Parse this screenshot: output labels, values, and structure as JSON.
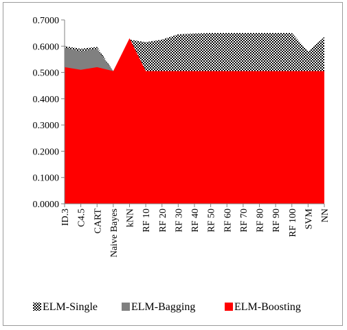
{
  "chart_data": {
    "type": "area",
    "title": "",
    "xlabel": "",
    "ylabel": "",
    "ylim": [
      0,
      0.7
    ],
    "yticks": [
      "0.0000",
      "0.1000",
      "0.2000",
      "0.3000",
      "0.4000",
      "0.5000",
      "0.6000",
      "0.7000"
    ],
    "y_tick_values": [
      0,
      0.1,
      0.2,
      0.3,
      0.4,
      0.5,
      0.6,
      0.7
    ],
    "categories": [
      "ID.3",
      "C4.5",
      "CART",
      "Naive Bayes",
      "kNN",
      "RF 10",
      "RF 20",
      "RF 30",
      "RF 40",
      "RF 50",
      "RF 60",
      "RF 70",
      "RF 80",
      "RF 90",
      "RF 100",
      "SVM",
      "NN"
    ],
    "grid": false,
    "legend_position": "bottom",
    "series": [
      {
        "name": "ELM-Single",
        "pattern": "checker",
        "color": "#000000",
        "values": [
          0.6,
          0.59,
          0.597,
          0.505,
          0.625,
          0.615,
          0.625,
          0.645,
          0.648,
          0.65,
          0.65,
          0.65,
          0.65,
          0.65,
          0.65,
          0.58,
          0.635
        ]
      },
      {
        "name": "ELM-Bagging",
        "color": "#808080",
        "values": [
          0.595,
          0.58,
          0.59,
          0.505,
          0.625,
          0.505,
          0.505,
          0.505,
          0.505,
          0.505,
          0.505,
          0.505,
          0.505,
          0.505,
          0.505,
          0.505,
          0.505
        ]
      },
      {
        "name": "ELM-Boosting",
        "color": "#ff0000",
        "values": [
          0.52,
          0.51,
          0.52,
          0.505,
          0.63,
          0.505,
          0.505,
          0.505,
          0.505,
          0.505,
          0.505,
          0.505,
          0.505,
          0.505,
          0.505,
          0.505,
          0.505
        ]
      }
    ]
  }
}
